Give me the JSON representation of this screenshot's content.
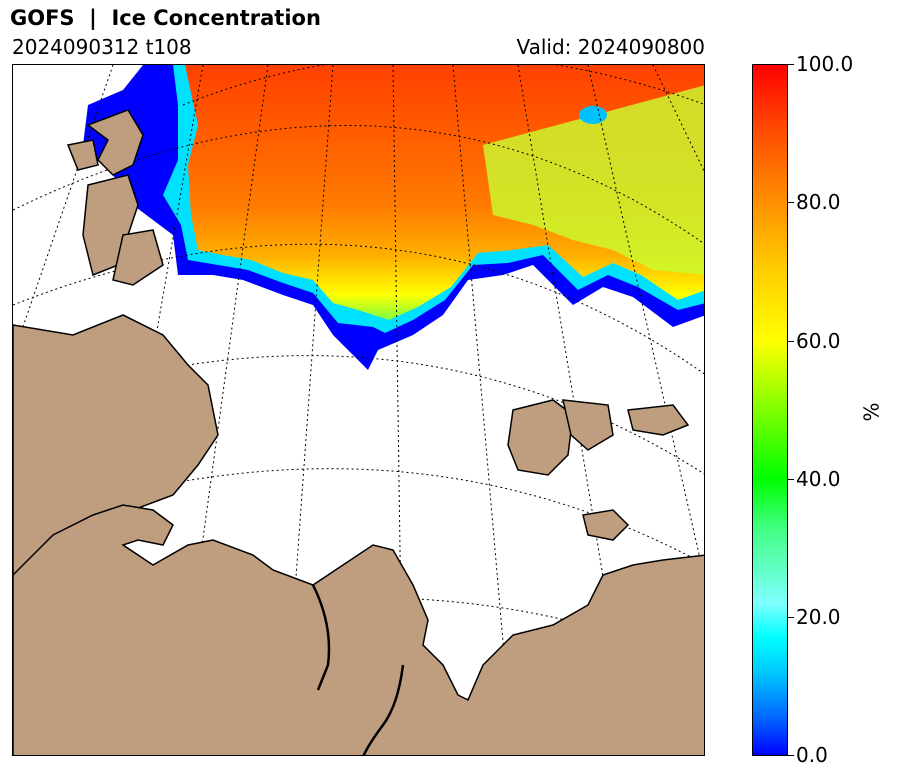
{
  "header": {
    "title": "GOFS  |  Ice Concentration",
    "run": "2024090312 t108",
    "valid": "Valid: 2024090800"
  },
  "colors": {
    "land": "#bf9e80",
    "ocean": "#ffffff",
    "coastline": "#000000",
    "gridlines": "#000000"
  },
  "map": {
    "projection": "polar stereographic",
    "gridlines_style": "dotted",
    "region": "Kara Sea / Barents Sea"
  },
  "colorbar": {
    "unit": "%",
    "min": 0.0,
    "max": 100.0,
    "ticks": [
      "0.0",
      "20.0",
      "40.0",
      "60.0",
      "80.0",
      "100.0"
    ],
    "colormap": [
      "#0000ff",
      "#00ffff",
      "#00ff00",
      "#ffff00",
      "#ff9000",
      "#ff0000"
    ]
  }
}
